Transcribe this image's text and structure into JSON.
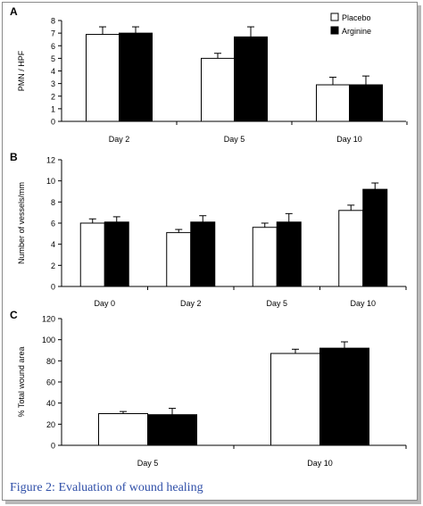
{
  "caption": "Figure 2: Evaluation of wound healing",
  "colors": {
    "placebo": "#ffffff",
    "arginine": "#000000",
    "caption": "#2f4fa8"
  },
  "chart_data": [
    {
      "type": "bar",
      "panel_label": "A",
      "ylabel": "PMN / HPF",
      "ylim": [
        0,
        8
      ],
      "yticks": [
        0,
        1,
        2,
        3,
        4,
        5,
        6,
        7,
        8
      ],
      "categories": [
        "Day 2",
        "Day 5",
        "Day 10"
      ],
      "legend": "top-right",
      "series": [
        {
          "name": "Placebo",
          "values": [
            6.9,
            5.0,
            2.9
          ],
          "errors": [
            0.6,
            0.4,
            0.6
          ]
        },
        {
          "name": "Arginine",
          "values": [
            7.0,
            6.7,
            2.9
          ],
          "errors": [
            0.5,
            0.8,
            0.7
          ]
        }
      ]
    },
    {
      "type": "bar",
      "panel_label": "B",
      "ylabel": "Number of vessels/mm",
      "ylim": [
        0,
        12
      ],
      "yticks": [
        0,
        2,
        4,
        6,
        8,
        10,
        12
      ],
      "categories": [
        "Day 0",
        "Day 2",
        "Day 5",
        "Day 10"
      ],
      "series": [
        {
          "name": "Placebo",
          "values": [
            6.0,
            5.1,
            5.6,
            7.2
          ],
          "errors": [
            0.4,
            0.3,
            0.4,
            0.5
          ]
        },
        {
          "name": "Arginine",
          "values": [
            6.1,
            6.1,
            6.1,
            9.2
          ],
          "errors": [
            0.5,
            0.6,
            0.8,
            0.6
          ]
        }
      ]
    },
    {
      "type": "bar",
      "panel_label": "C",
      "ylabel": "% Total wound area",
      "ylim": [
        0,
        120
      ],
      "yticks": [
        0,
        20,
        40,
        60,
        80,
        100,
        120
      ],
      "categories": [
        "Day 5",
        "Day 10"
      ],
      "series": [
        {
          "name": "Placebo",
          "values": [
            30,
            87
          ],
          "errors": [
            2,
            4
          ]
        },
        {
          "name": "Arginine",
          "values": [
            29,
            92
          ],
          "errors": [
            6,
            6
          ]
        }
      ]
    }
  ]
}
